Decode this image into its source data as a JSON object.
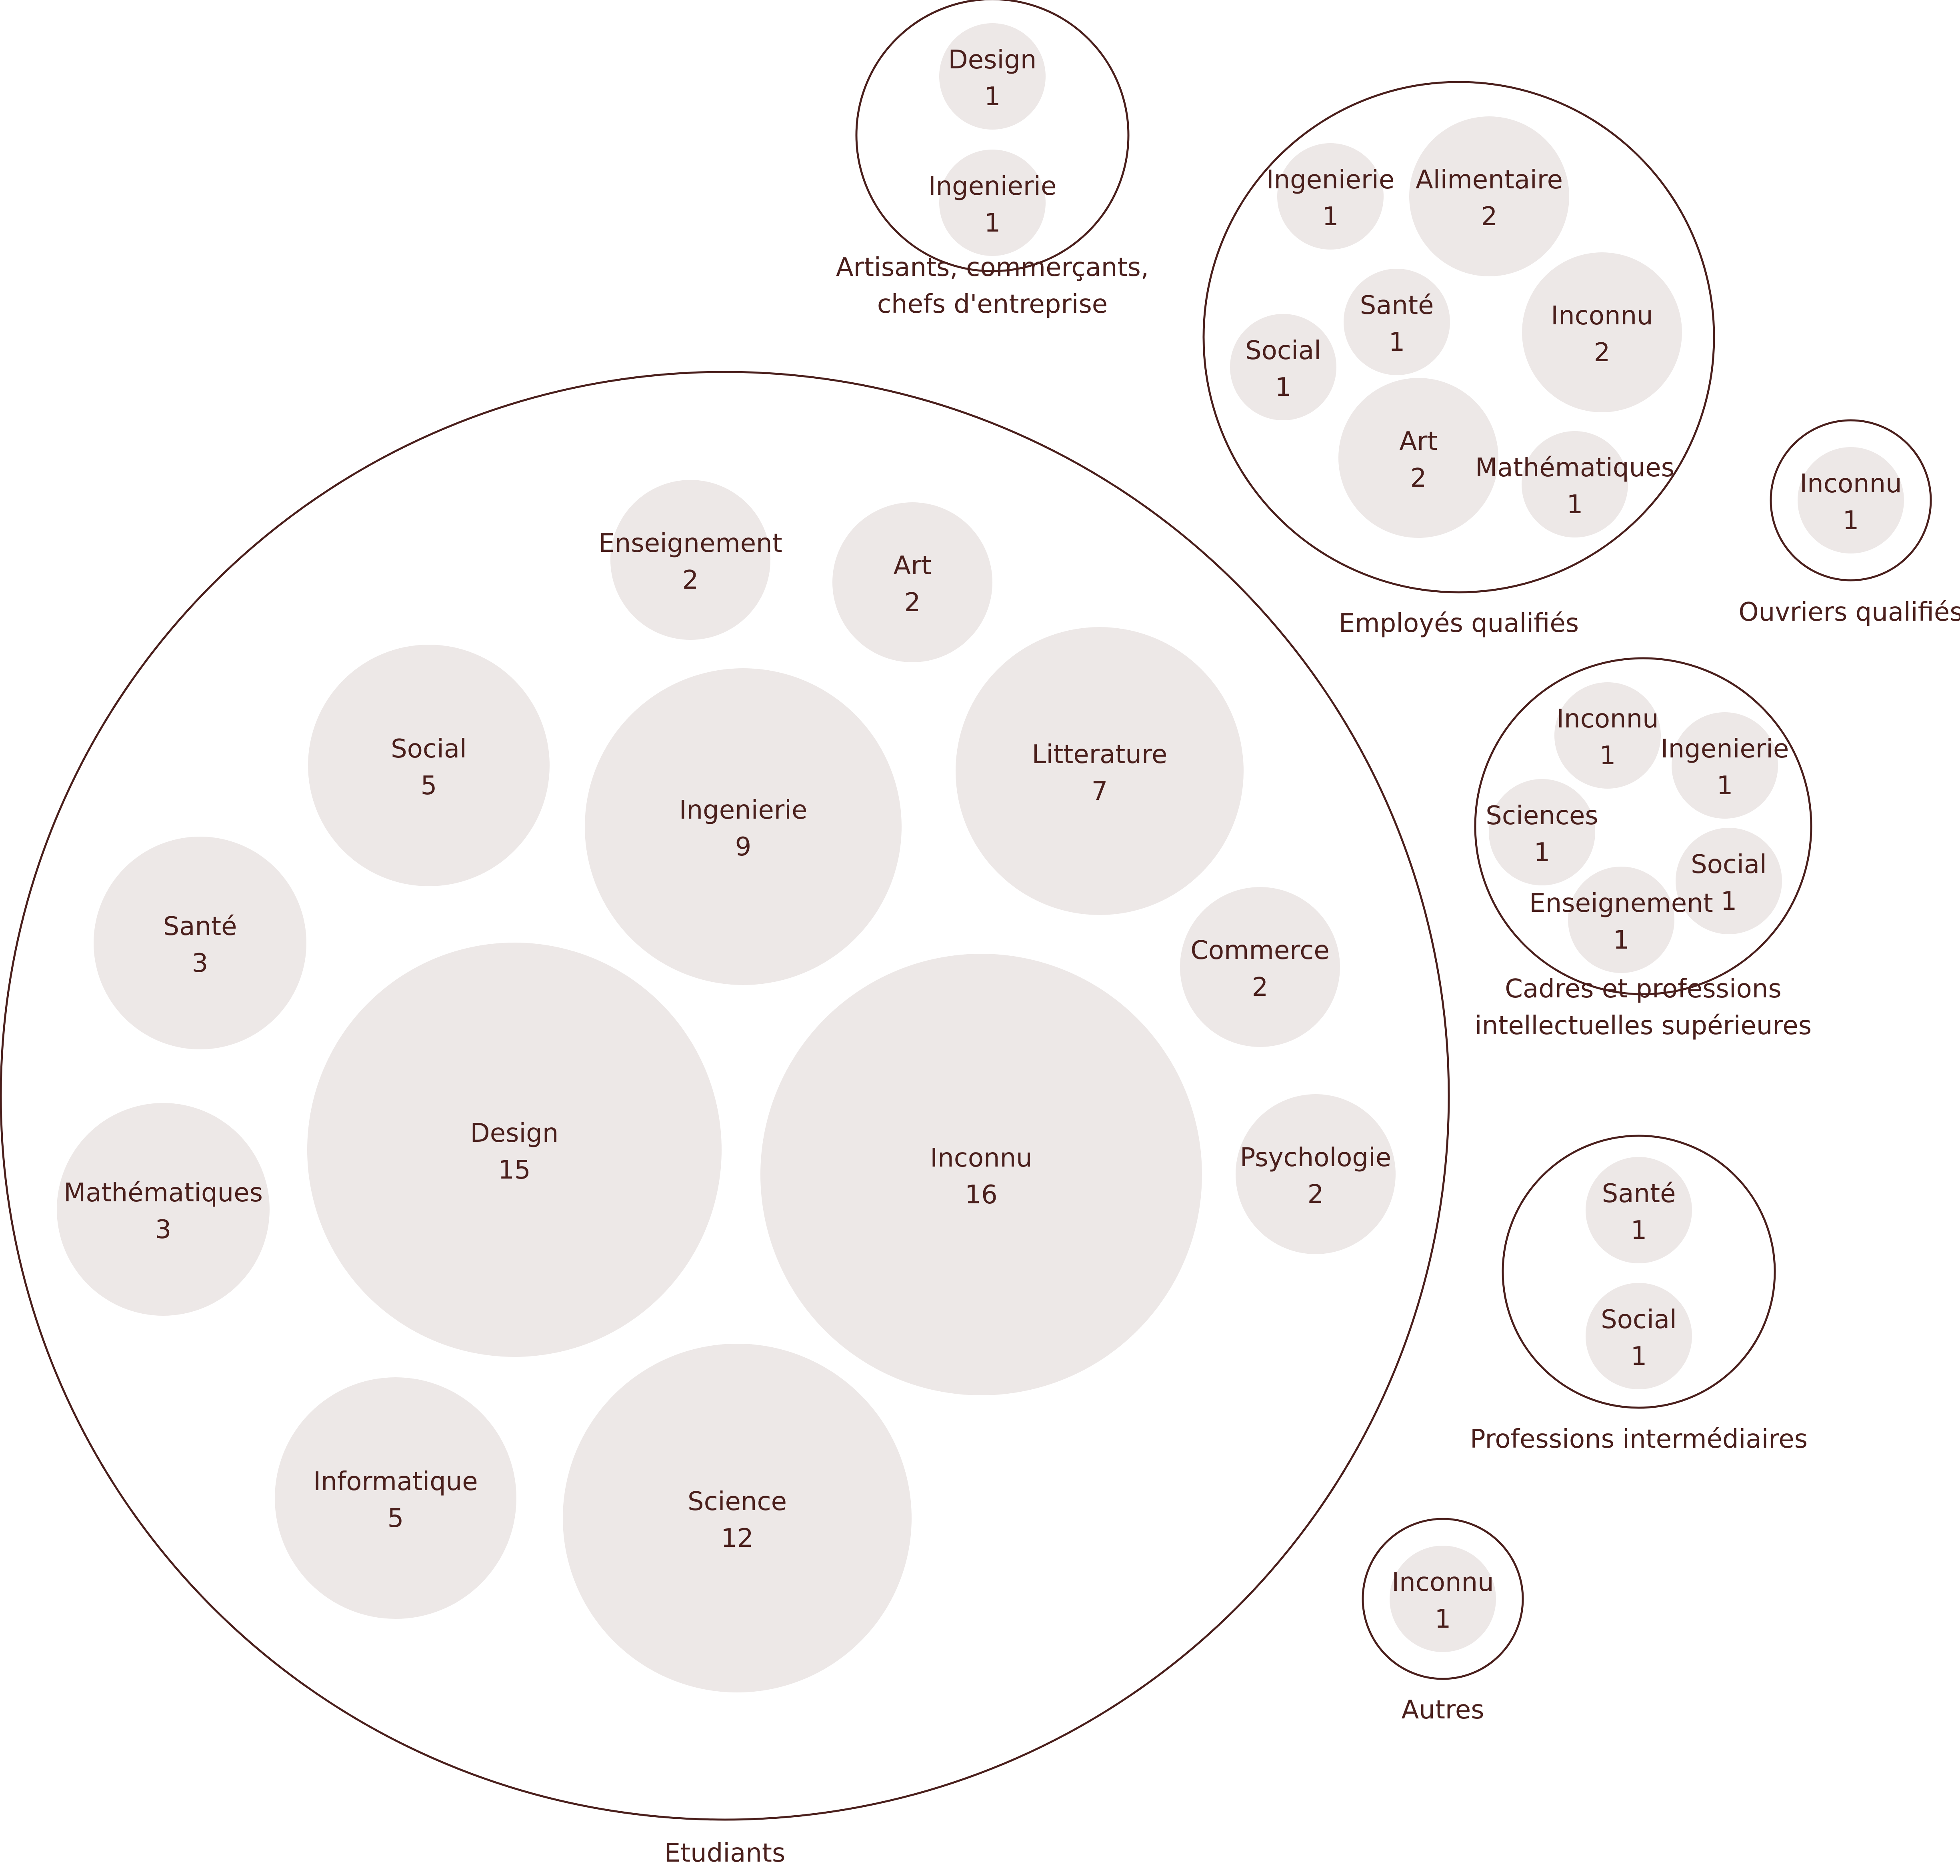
{
  "chart_data": {
    "type": "bubble",
    "colors": {
      "outline": "#4a1f1c",
      "bubble": "#ede8e7",
      "text": "#4a1f1c",
      "background": "#ffffff"
    },
    "groups": [
      {
        "name": [
          "Etudiants"
        ],
        "children": [
          {
            "label": "Inconnu",
            "value": 16
          },
          {
            "label": "Design",
            "value": 15
          },
          {
            "label": "Science",
            "value": 12
          },
          {
            "label": "Ingenierie",
            "value": 9
          },
          {
            "label": "Litterature",
            "value": 7
          },
          {
            "label": "Social",
            "value": 5
          },
          {
            "label": "Informatique",
            "value": 5
          },
          {
            "label": "Santé",
            "value": 3
          },
          {
            "label": "Mathématiques",
            "value": 3
          },
          {
            "label": "Enseignement",
            "value": 2
          },
          {
            "label": "Art",
            "value": 2
          },
          {
            "label": "Commerce",
            "value": 2
          },
          {
            "label": "Psychologie",
            "value": 2
          }
        ]
      },
      {
        "name": [
          "Artisants, commerçants,",
          "chefs d'entreprise"
        ],
        "children": [
          {
            "label": "Design",
            "value": 1
          },
          {
            "label": "Ingenierie",
            "value": 1
          }
        ]
      },
      {
        "name": [
          "Employés qualifiés"
        ],
        "children": [
          {
            "label": "Ingenierie",
            "value": 1
          },
          {
            "label": "Alimentaire",
            "value": 2
          },
          {
            "label": "Santé",
            "value": 1
          },
          {
            "label": "Inconnu",
            "value": 2
          },
          {
            "label": "Social",
            "value": 1
          },
          {
            "label": "Art",
            "value": 2
          },
          {
            "label": "Mathématiques",
            "value": 1
          }
        ]
      },
      {
        "name": [
          "Ouvriers qualifiés"
        ],
        "children": [
          {
            "label": "Inconnu",
            "value": 1
          }
        ]
      },
      {
        "name": [
          "Cadres et professions",
          "intellectuelles supérieures"
        ],
        "children": [
          {
            "label": "Inconnu",
            "value": 1
          },
          {
            "label": "Ingenierie",
            "value": 1
          },
          {
            "label": "Sciences",
            "value": 1
          },
          {
            "label": "Social",
            "value": 1
          },
          {
            "label": "Enseignement",
            "value": 1
          }
        ]
      },
      {
        "name": [
          "Professions intermédiaires"
        ],
        "children": [
          {
            "label": "Santé",
            "value": 1
          },
          {
            "label": "Social",
            "value": 1
          }
        ]
      },
      {
        "name": [
          "Autres"
        ],
        "children": [
          {
            "label": "Inconnu",
            "value": 1
          }
        ]
      }
    ]
  }
}
